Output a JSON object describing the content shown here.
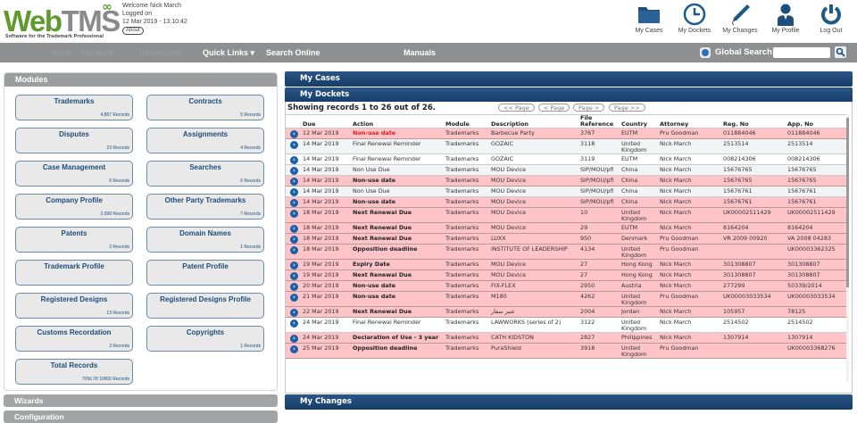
{
  "header": {
    "logo": {
      "web": "Web",
      "tms": "TMS",
      "tagline": "Software for the Trademark Professional"
    },
    "welcome": "Welcome Nick March",
    "logged_on_label": "Logged on",
    "logged_on_time": "12 Mar 2019 - 13:10:42",
    "about_label": "About",
    "icons": [
      {
        "label": "My Cases",
        "icon": "folder-icon"
      },
      {
        "label": "My Dockets",
        "icon": "clock-icon"
      },
      {
        "label": "My Changes",
        "icon": "pen-icon"
      },
      {
        "label": "My Profile",
        "icon": "user-icon"
      },
      {
        "label": "Log Out",
        "icon": "power-icon"
      }
    ]
  },
  "navbar": {
    "back": "Back",
    "forward": "Forward",
    "dashboard": "Dashboard",
    "quick_links": "Quick Links ▾",
    "search_online": "Search Online",
    "manuals": "Manuals",
    "global_search_label": "Global Search",
    "global_search_value": ""
  },
  "modules": {
    "title": "Modules",
    "items": [
      {
        "title": "Trademarks",
        "records": "4,887 Records"
      },
      {
        "title": "Contracts",
        "records": "5 Records"
      },
      {
        "title": "Disputes",
        "records": "23 Records"
      },
      {
        "title": "Assignments",
        "records": "4 Records"
      },
      {
        "title": "Case Management",
        "records": "6 Records"
      },
      {
        "title": "Searches",
        "records": "6 Records"
      },
      {
        "title": "Company Profile",
        "records": "2,098 Records"
      },
      {
        "title": "Other Party Trademarks",
        "records": "7 Records"
      },
      {
        "title": "Patents",
        "records": "2 Records"
      },
      {
        "title": "Domain Names",
        "records": "1 Records"
      },
      {
        "title": "Trademark Profile",
        "records": ""
      },
      {
        "title": "Patent Profile",
        "records": ""
      },
      {
        "title": "Registered Designs",
        "records": "13 Records"
      },
      {
        "title": "Registered Designs Profile",
        "records": ""
      },
      {
        "title": "Customs Recordation",
        "records": "3 Records"
      },
      {
        "title": "Copyrights",
        "records": "1 Records"
      },
      {
        "title": "Total Records",
        "records": "7056 Of 10000 Records"
      }
    ]
  },
  "wizards": {
    "title": "Wizards"
  },
  "configuration": {
    "title": "Configuration"
  },
  "my_cases": {
    "title": "My Cases"
  },
  "my_changes": {
    "title": "My Changes"
  },
  "dockets": {
    "title": "My Dockets",
    "showing": "Showing records 1 to 26 out of 26.",
    "pager": {
      "first": "<< Page",
      "prev": "< Page",
      "next": "Page >",
      "last": "Page >>"
    },
    "columns": [
      "Due",
      "Action",
      "Module",
      "Description",
      "File Reference",
      "Country",
      "Attorney",
      "Reg. No",
      "App. No"
    ],
    "rows": [
      {
        "style": "pink",
        "action_style": "red",
        "due": "12 Mar 2019",
        "action": "Non-use date",
        "module": "Trademarks",
        "description": "Barbecue Party",
        "file_ref": "3767",
        "country": "EUTM",
        "attorney": "Pru Goodman",
        "reg_no": "011884046",
        "app_no": "011884046"
      },
      {
        "style": "plain",
        "action_style": "normal",
        "due": "14 Mar 2019",
        "action": "Final Renewal Reminder",
        "module": "Trademarks",
        "description": "GOZAIC",
        "file_ref": "3118",
        "country": "United Kingdom",
        "attorney": "Nick March",
        "reg_no": "2513514",
        "app_no": "2513514"
      },
      {
        "style": "white",
        "action_style": "normal",
        "due": "14 Mar 2019",
        "action": "Final Renewal Reminder",
        "module": "Trademarks",
        "description": "GOZAIC",
        "file_ref": "3119",
        "country": "EUTM",
        "attorney": "Nick March",
        "reg_no": "008214306",
        "app_no": "008214306"
      },
      {
        "style": "plain",
        "action_style": "normal",
        "due": "14 Mar 2019",
        "action": "Non Use Due",
        "module": "Trademarks",
        "description": "MOU Device",
        "file_ref": "SIP/MOU/pfl",
        "country": "China",
        "attorney": "Nick March",
        "reg_no": "15676765",
        "app_no": "15676765"
      },
      {
        "style": "pink",
        "action_style": "bold",
        "due": "14 Mar 2019",
        "action": "Non-use date",
        "module": "Trademarks",
        "description": "MOU Device",
        "file_ref": "SIP/MOU/pfl",
        "country": "China",
        "attorney": "Nick March",
        "reg_no": "15676765",
        "app_no": "15676765"
      },
      {
        "style": "plain",
        "action_style": "normal",
        "due": "14 Mar 2019",
        "action": "Non Use Due",
        "module": "Trademarks",
        "description": "MOU Device",
        "file_ref": "SIP/MOU/pfl",
        "country": "China",
        "attorney": "Nick March",
        "reg_no": "15676761",
        "app_no": "15676761"
      },
      {
        "style": "pink",
        "action_style": "bold",
        "due": "14 Mar 2019",
        "action": "Non-use date",
        "module": "Trademarks",
        "description": "MOU Device",
        "file_ref": "SIP/MOU/pfl",
        "country": "China",
        "attorney": "Nick March",
        "reg_no": "15676761",
        "app_no": "15676761"
      },
      {
        "style": "pink",
        "action_style": "bold",
        "due": "18 Mar 2019",
        "action": "Next Renewal Due",
        "module": "Trademarks",
        "description": "MOU Device",
        "file_ref": "10",
        "country": "United Kingdom",
        "attorney": "Nick March",
        "reg_no": "UK00002511429",
        "app_no": "UK00002511429"
      },
      {
        "style": "pink",
        "action_style": "bold",
        "due": "18 Mar 2019",
        "action": "Next Renewal Due",
        "module": "Trademarks",
        "description": "MOU Device",
        "file_ref": "29",
        "country": "EUTM",
        "attorney": "Nick March",
        "reg_no": "8164204",
        "app_no": "8164204"
      },
      {
        "style": "pink",
        "action_style": "bold",
        "due": "18 Mar 2019",
        "action": "Next Renewal Due",
        "module": "Trademarks",
        "description": "LUXX",
        "file_ref": "950",
        "country": "Denmark",
        "attorney": "Pru Goodman",
        "reg_no": "VR 2009 00920",
        "app_no": "VA 2008 04283"
      },
      {
        "style": "pink",
        "action_style": "bold",
        "due": "18 Mar 2019",
        "action": "Opposition deadline",
        "module": "Trademarks",
        "description": "INSTITUTE OF LEADERSHIP",
        "file_ref": "4134",
        "country": "United Kingdom",
        "attorney": "Pru Goodman",
        "reg_no": "",
        "app_no": "UK00003362325"
      },
      {
        "style": "pink",
        "action_style": "bold",
        "due": "19 Mar 2019",
        "action": "Expiry Date",
        "module": "Trademarks",
        "description": "MOU Device",
        "file_ref": "27",
        "country": "Hong Kong",
        "attorney": "Nick March",
        "reg_no": "301308807",
        "app_no": "301308807"
      },
      {
        "style": "pink",
        "action_style": "bold",
        "due": "19 Mar 2019",
        "action": "Next Renewal Due",
        "module": "Trademarks",
        "description": "MOU Device",
        "file_ref": "27",
        "country": "Hong Kong",
        "attorney": "Nick March",
        "reg_no": "301308807",
        "app_no": "301308807"
      },
      {
        "style": "pink",
        "action_style": "bold",
        "due": "20 Mar 2019",
        "action": "Non-use date",
        "module": "Trademarks",
        "description": "FIX-FLEX",
        "file_ref": "2950",
        "country": "Austria",
        "attorney": "Nick March",
        "reg_no": "277299",
        "app_no": "50339/2014"
      },
      {
        "style": "pink",
        "action_style": "bold",
        "due": "21 Mar 2019",
        "action": "Non-use date",
        "module": "Trademarks",
        "description": "M180",
        "file_ref": "4262",
        "country": "United Kingdom",
        "attorney": "Pru Goodman",
        "reg_no": "UK00003033534",
        "app_no": "UK00003033534"
      },
      {
        "style": "pink",
        "action_style": "bold",
        "due": "22 Mar 2019",
        "action": "Next Renewal Due",
        "module": "Trademarks",
        "description": "عنبر سفار",
        "file_ref": "2004",
        "country": "Jordan",
        "attorney": "Nick March",
        "reg_no": "105957",
        "app_no": "78125"
      },
      {
        "style": "white",
        "action_style": "normal",
        "due": "24 Mar 2019",
        "action": "Final Renewal Reminder",
        "module": "Trademarks",
        "description": "LAWWORKS (series of 2)",
        "file_ref": "3122",
        "country": "United Kingdom",
        "attorney": "Nick March",
        "reg_no": "2514502",
        "app_no": "2514502"
      },
      {
        "style": "pink",
        "action_style": "bold",
        "due": "24 Mar 2019",
        "action": "Declaration of Use - 3 year",
        "module": "Trademarks",
        "description": "CATH KIDSTON",
        "file_ref": "2827",
        "country": "Philippines",
        "attorney": "Nick March",
        "reg_no": "1307914",
        "app_no": "1307914"
      },
      {
        "style": "pink",
        "action_style": "bold",
        "due": "25 Mar 2019",
        "action": "Opposition deadline",
        "module": "Trademarks",
        "description": "PuraShield",
        "file_ref": "3918",
        "country": "United Kingdom",
        "attorney": "Pru Goodman",
        "reg_no": "",
        "app_no": "UK00003368276"
      }
    ]
  },
  "colors": {
    "brand_green": "#5f9a2c",
    "navbar_gray": "#8e8f91",
    "panel_blue": "#1f4a78",
    "row_highlight": "#ffc4c7",
    "alert_red": "#e21a1a"
  }
}
